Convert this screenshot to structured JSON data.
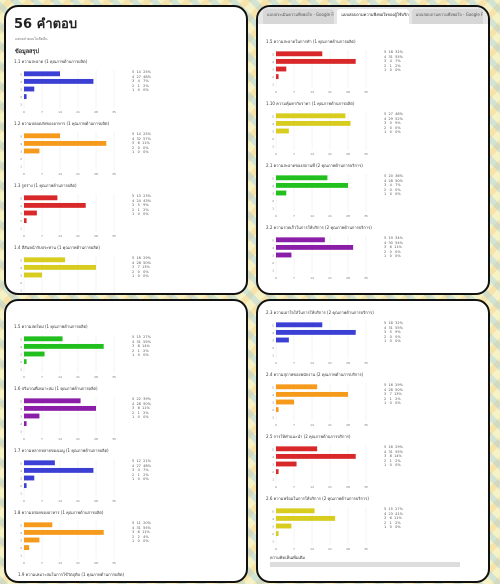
{
  "win1": {
    "title": "56 คำตอบ",
    "sub": "แสดงคำตอบในชีตอื่น",
    "summary": "ข้อมูลสรุป",
    "questions": [
      {
        "title": "1.1 ความสะอาด (1 คุณภาพด้านการผลิต)",
        "color": "#3b3fd3",
        "values": [
          14,
          27,
          4,
          1,
          0
        ],
        "legend": [
          "5  14  25%",
          "4  27  48%",
          "3   4   7%",
          "2   1   2%",
          "1   0   0%"
        ]
      },
      {
        "title": "1.2 ความปลอดภัยของอาหาร (1 คุณภาพด้านการผลิต)",
        "color": "#f59a1a",
        "values": [
          14,
          32,
          6,
          0,
          0
        ],
        "legend": [
          "5  14  25%",
          "4  32  57%",
          "3   6  11%",
          "2   0   0%",
          "1   0   0%"
        ]
      },
      {
        "title": "1.3 รูปร่าง (1 คุณภาพด้านการผลิต)",
        "color": "#d9282a",
        "values": [
          13,
          24,
          5,
          1,
          0
        ],
        "legend": [
          "5  13  23%",
          "4  24  43%",
          "3   5   9%",
          "2   1   2%",
          "1   0   0%"
        ]
      },
      {
        "title": "1.4 สีสันหน้ารับประทาน (1 คุณภาพด้านการผลิต)",
        "color": "#d8cc1e",
        "values": [
          16,
          28,
          7,
          0,
          0
        ],
        "legend": [
          "5  16  29%",
          "4  28  50%",
          "3   7  13%",
          "2   0   0%",
          "1   0   0%"
        ]
      }
    ]
  },
  "win2": {
    "tabs": [
      "แบบประเมินความพึงพอใจ - Google Forms",
      "แบบสอบถามความพึงพอใจของผู้ใช้บริการ",
      "แบบสอบถามความพึงพอใจ - Google Forms"
    ],
    "questions": [
      {
        "title": "1.5 ความสะอาดในการทำ (1 คุณภาพด้านการผลิต)",
        "color": "#d9282a",
        "values": [
          18,
          31,
          4,
          1,
          0
        ],
        "legend": [
          "5  18  32%",
          "4  31  55%",
          "3   4   7%",
          "2   1   2%",
          "1   0   0%"
        ]
      },
      {
        "title": "1.10 ความคุ้มค่ากับราคา (1 คุณภาพด้านการผลิต)",
        "color": "#d8cc1e",
        "values": [
          27,
          29,
          5,
          0,
          0
        ],
        "legend": [
          "5  27  48%",
          "4  29  52%",
          "3   5   9%",
          "2   0   0%",
          "1   0   0%"
        ]
      },
      {
        "title": "2.1 ความสะอาดของสถานที่ (2 คุณภาพด้านการบริการ)",
        "color": "#22c01e",
        "values": [
          20,
          28,
          4,
          0,
          0
        ],
        "legend": [
          "5  20  36%",
          "4  28  50%",
          "3   4   7%",
          "2   0   0%",
          "1   0   0%"
        ]
      },
      {
        "title": "2.2 ความรวดเร็วในการให้บริการ (2 คุณภาพด้านการบริการ)",
        "color": "#8a1ea8",
        "values": [
          19,
          30,
          6,
          0,
          0
        ],
        "legend": [
          "5  19  34%",
          "4  30  54%",
          "3   6  11%",
          "2   0   0%",
          "1   0   0%"
        ]
      }
    ]
  },
  "win3": {
    "questions": [
      {
        "title": "1.5 ความสดใหม่ (1 คุณภาพด้านการผลิต)",
        "color": "#22c01e",
        "values": [
          15,
          31,
          8,
          1,
          0
        ],
        "legend": [
          "5  15  27%",
          "4  31  55%",
          "3   8  14%",
          "2   1   2%",
          "1   0   0%"
        ]
      },
      {
        "title": "1.6 ปริมาณที่เหมาะสม (1 คุณภาพด้านการผลิต)",
        "color": "#8a1ea8",
        "values": [
          22,
          28,
          6,
          1,
          0
        ],
        "legend": [
          "5  22  39%",
          "4  28  50%",
          "3   6  11%",
          "2   1   2%",
          "1   0   0%"
        ]
      },
      {
        "title": "1.7 ความหลากหลายของเมนู (1 คุณภาพด้านการผลิต)",
        "color": "#3b3fd3",
        "values": [
          12,
          27,
          4,
          1,
          0
        ],
        "legend": [
          "5  12  21%",
          "4  27  48%",
          "3   4   7%",
          "2   1   2%",
          "1   0   0%"
        ]
      },
      {
        "title": "1.8 ความอร่อยของอาหาร (1 คุณภาพด้านการผลิต)",
        "color": "#f59a1a",
        "values": [
          11,
          31,
          6,
          2,
          0
        ],
        "legend": [
          "5  11  20%",
          "4  31  55%",
          "3   6  11%",
          "2   2   4%",
          "1   0   0%"
        ]
      }
    ],
    "footer": "1.9 ความเหมาะสมในการใช้วัตถุดิบ (1 คุณภาพด้านการผลิต)"
  },
  "win4": {
    "questions": [
      {
        "title": "2.3 ความเอาใจใส่ในการให้บริการ (2 คุณภาพด้านการบริการ)",
        "color": "#3b3fd3",
        "values": [
          18,
          31,
          5,
          0,
          0
        ],
        "legend": [
          "5  18  32%",
          "4  31  55%",
          "3   5   9%",
          "2   0   0%",
          "1   0   0%"
        ]
      },
      {
        "title": "2.4 ความสุภาพของพนักงาน (2 คุณภาพด้านการบริการ)",
        "color": "#f59a1a",
        "values": [
          16,
          28,
          7,
          1,
          0
        ],
        "legend": [
          "5  16  29%",
          "4  28  50%",
          "3   7  13%",
          "2   1   2%",
          "1   0   0%"
        ]
      },
      {
        "title": "2.5 การให้คำแนะนำ (2 คุณภาพด้านการบริการ)",
        "color": "#d9282a",
        "values": [
          16,
          31,
          8,
          1,
          0
        ],
        "legend": [
          "5  16  29%",
          "4  31  55%",
          "3   8  14%",
          "2   1   2%",
          "1   0   0%"
        ]
      },
      {
        "title": "2.6 ความพร้อมในการให้บริการ (2 คุณภาพด้านการบริการ)",
        "color": "#d8cc1e",
        "values": [
          15,
          23,
          6,
          1,
          0
        ],
        "legend": [
          "5  15  27%",
          "4  23  41%",
          "3   6  11%",
          "2   1   2%",
          "1   0   0%"
        ]
      }
    ],
    "footer": "ความคิดเห็นเพิ่มเติม"
  },
  "axis_ticks": [
    "0",
    "7",
    "14",
    "21",
    "28",
    "35"
  ]
}
